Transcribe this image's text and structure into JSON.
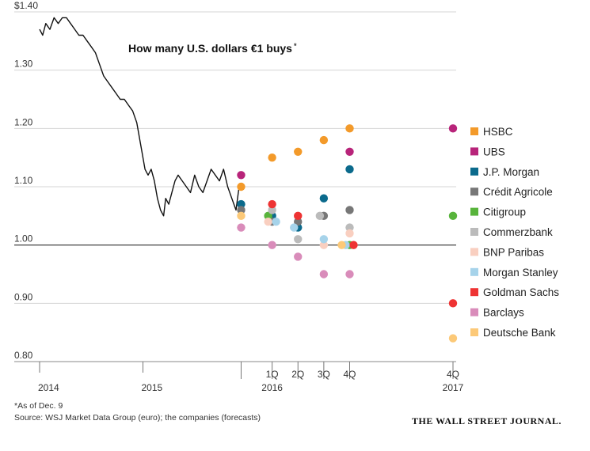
{
  "chart_data": {
    "type": "line",
    "title": "How many U.S. dollars €1 buys",
    "title_marker": "*",
    "ylim": [
      0.8,
      1.4
    ],
    "y_ticks": [
      {
        "value": 1.4,
        "label": "$1.40"
      },
      {
        "value": 1.3,
        "label": "1.30"
      },
      {
        "value": 1.2,
        "label": "1.20"
      },
      {
        "value": 1.1,
        "label": "1.10"
      },
      {
        "value": 1.0,
        "label": "1.00"
      },
      {
        "value": 0.9,
        "label": "0.90"
      },
      {
        "value": 0.8,
        "label": "0.80"
      }
    ],
    "reference_line": 1.0,
    "x_ticks": [
      {
        "t": 2014.0,
        "label": "2014",
        "major": true
      },
      {
        "t": 2015.0,
        "label": "2015",
        "major": true
      },
      {
        "t": 2015.95,
        "label": "",
        "major": false
      },
      {
        "t": 2016.25,
        "label": "1Q",
        "major": false
      },
      {
        "t": 2016.5,
        "label": "2Q",
        "major": false
      },
      {
        "t": 2016.75,
        "label": "3Q",
        "major": false
      },
      {
        "t": 2017.0,
        "label": "4Q",
        "major": false
      },
      {
        "t": 2018.0,
        "label": "4Q",
        "major": false
      }
    ],
    "x_group_labels": [
      {
        "t": 2016.25,
        "label": "2016"
      },
      {
        "t": 2018.0,
        "label": "2017"
      }
    ],
    "xlim": [
      2013.98,
      2018.25
    ],
    "history": {
      "name": "EUR/USD (as of Dec. 9)",
      "x": [
        2014.0,
        2014.03,
        2014.06,
        2014.1,
        2014.14,
        2014.18,
        2014.22,
        2014.26,
        2014.3,
        2014.34,
        2014.38,
        2014.42,
        2014.46,
        2014.5,
        2014.54,
        2014.58,
        2014.62,
        2014.66,
        2014.7,
        2014.74,
        2014.78,
        2014.82,
        2014.86,
        2014.9,
        2014.94,
        2014.98,
        2015.02,
        2015.05,
        2015.08,
        2015.11,
        2015.14,
        2015.17,
        2015.2,
        2015.22,
        2015.25,
        2015.28,
        2015.31,
        2015.34,
        2015.38,
        2015.42,
        2015.46,
        2015.5,
        2015.54,
        2015.58,
        2015.62,
        2015.66,
        2015.7,
        2015.74,
        2015.78,
        2015.82,
        2015.86,
        2015.9,
        2015.93
      ],
      "values": [
        1.37,
        1.36,
        1.38,
        1.37,
        1.39,
        1.38,
        1.39,
        1.39,
        1.38,
        1.37,
        1.36,
        1.36,
        1.35,
        1.34,
        1.33,
        1.31,
        1.29,
        1.28,
        1.27,
        1.26,
        1.25,
        1.25,
        1.24,
        1.23,
        1.21,
        1.17,
        1.13,
        1.12,
        1.13,
        1.11,
        1.08,
        1.06,
        1.05,
        1.08,
        1.07,
        1.09,
        1.11,
        1.12,
        1.11,
        1.1,
        1.09,
        1.12,
        1.1,
        1.09,
        1.11,
        1.13,
        1.12,
        1.11,
        1.13,
        1.1,
        1.08,
        1.06,
        1.1
      ]
    },
    "series": [
      {
        "name": "HSBC",
        "color": "#f39a2a",
        "values": [
          1.1,
          1.15,
          1.16,
          1.18,
          1.2
        ],
        "value_2017": null
      },
      {
        "name": "UBS",
        "color": "#b8247a",
        "values": [
          1.12,
          null,
          null,
          null,
          1.16
        ],
        "value_2017": 1.2
      },
      {
        "name": "J.P. Morgan",
        "color": "#0b6a8c",
        "values": [
          1.07,
          1.05,
          1.03,
          1.08,
          1.13
        ],
        "value_2017": null
      },
      {
        "name": "Crédit Agricole",
        "color": "#777777",
        "values": [
          1.06,
          1.04,
          1.04,
          1.05,
          1.06
        ],
        "value_2017": null
      },
      {
        "name": "Citigroup",
        "color": "#58b43c",
        "values": [
          null,
          1.05,
          null,
          null,
          1.0
        ],
        "value_2017": 1.05
      },
      {
        "name": "Commerzbank",
        "color": "#bbbbbb",
        "values": [
          null,
          1.06,
          1.01,
          1.05,
          1.03
        ],
        "value_2017": null
      },
      {
        "name": "BNP Paribas",
        "color": "#f9cfc0",
        "values": [
          null,
          1.04,
          null,
          1.0,
          1.02
        ],
        "value_2017": null
      },
      {
        "name": "Morgan Stanley",
        "color": "#a6d3ea",
        "values": [
          null,
          1.04,
          1.03,
          1.01,
          1.0
        ],
        "value_2017": null
      },
      {
        "name": "Goldman Sachs",
        "color": "#ee3333",
        "values": [
          null,
          1.07,
          1.05,
          null,
          1.0
        ],
        "value_2017": 0.9
      },
      {
        "name": "Barclays",
        "color": "#d98cba",
        "values": [
          1.03,
          1.0,
          0.98,
          0.95,
          0.95
        ],
        "value_2017": null
      },
      {
        "name": "Deutsche Bank",
        "color": "#fcc978",
        "values": [
          1.05,
          null,
          null,
          null,
          1.0
        ],
        "value_2017": 0.84
      }
    ],
    "forecast_x": [
      2015.95,
      2016.25,
      2016.5,
      2016.75,
      2017.0
    ],
    "forecast_2017_x": 2018.0
  },
  "footnote": "*As of Dec. 9",
  "source": "Source: WSJ Market Data Group (euro); the companies (forecasts)",
  "brand": "THE WALL STREET JOURNAL."
}
